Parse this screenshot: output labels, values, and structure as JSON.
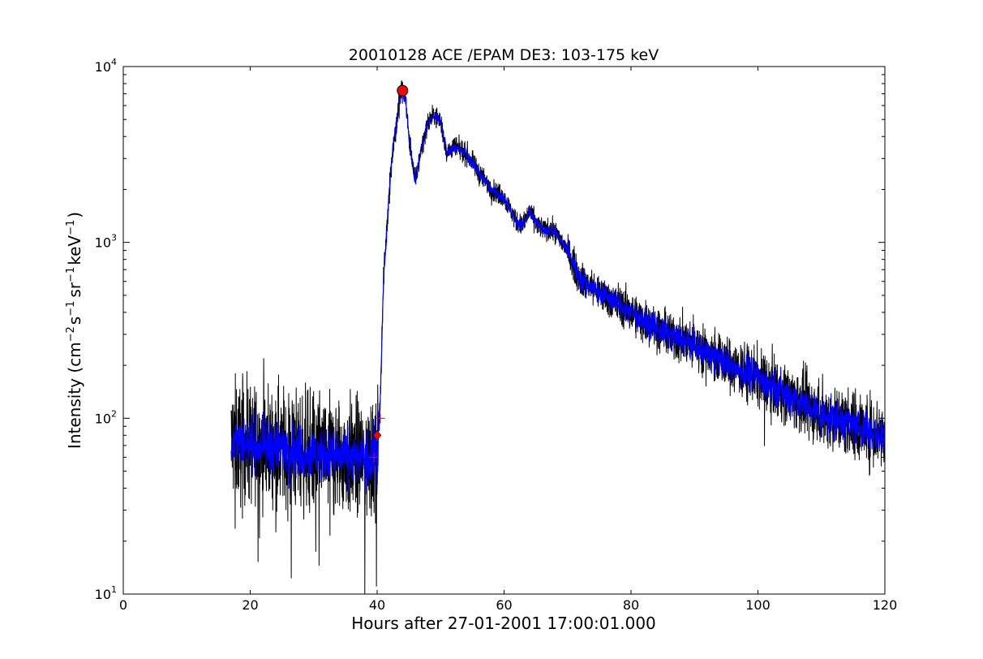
{
  "chart_data": {
    "type": "line",
    "title": "20010128 ACE /EPAM DE3: 103-175 keV",
    "xlabel": "Hours after 27-01-2001 17:00:01.000",
    "ylabel": {
      "main": "Intensity (cm",
      "exp1": "−2",
      "s": "s",
      "exp2": "−1",
      "sr": "sr",
      "exp3": "−1",
      "kev": "keV",
      "exp4": "−1",
      "close": ")"
    },
    "x_ticks": [
      "0",
      "20",
      "40",
      "60",
      "80",
      "100",
      "120"
    ],
    "x_tick_values": [
      0,
      20,
      40,
      60,
      80,
      100,
      120
    ],
    "y_ticks": [
      {
        "value": 10,
        "base": "10",
        "exp": "1"
      },
      {
        "value": 100,
        "base": "10",
        "exp": "2"
      },
      {
        "value": 1000,
        "base": "10",
        "exp": "3"
      },
      {
        "value": 10000,
        "base": "10",
        "exp": "4"
      }
    ],
    "xlim": [
      0,
      120
    ],
    "ylim": [
      10,
      10000
    ],
    "yscale": "log",
    "grid": false,
    "legend": "none",
    "series": [
      {
        "role": "raw",
        "color": "#000000",
        "x": [
          17,
          20,
          25,
          30,
          35,
          38,
          40,
          40.5,
          41,
          42,
          42.5,
          43,
          43.5,
          44,
          44.5,
          45,
          46,
          47,
          48,
          49,
          50,
          51,
          52,
          54,
          56,
          58,
          60,
          62,
          63,
          64,
          65,
          66,
          68,
          70,
          72,
          75,
          80,
          85,
          90,
          95,
          100,
          105,
          110,
          115,
          120
        ],
        "y": [
          75,
          72,
          68,
          63,
          60,
          58,
          60,
          130,
          600,
          2200,
          3500,
          4500,
          6500,
          7300,
          6500,
          4000,
          2200,
          3500,
          4800,
          5300,
          4900,
          3200,
          3500,
          3200,
          2500,
          2000,
          1800,
          1300,
          1250,
          1500,
          1300,
          1200,
          1150,
          900,
          620,
          520,
          400,
          310,
          260,
          205,
          170,
          135,
          105,
          92,
          80
        ]
      },
      {
        "role": "smoothed",
        "color": "#0000ff",
        "x": [
          17,
          20,
          25,
          30,
          35,
          38,
          40,
          40.5,
          41,
          42,
          42.5,
          43,
          43.5,
          44,
          44.5,
          45,
          46,
          47,
          48,
          49,
          50,
          51,
          52,
          54,
          56,
          58,
          60,
          62,
          63,
          64,
          65,
          66,
          68,
          70,
          72,
          75,
          80,
          85,
          90,
          95,
          100,
          105,
          110,
          115,
          120
        ],
        "y": [
          75,
          72,
          68,
          63,
          60,
          58,
          60,
          130,
          600,
          2200,
          3500,
          4500,
          6500,
          7300,
          6500,
          4000,
          2200,
          3500,
          4800,
          5300,
          4900,
          3200,
          3500,
          3200,
          2500,
          2000,
          1800,
          1300,
          1250,
          1500,
          1300,
          1200,
          1150,
          900,
          620,
          520,
          400,
          310,
          260,
          205,
          170,
          135,
          105,
          92,
          80
        ]
      }
    ],
    "markers": [
      {
        "name": "peak",
        "shape": "circle",
        "color": "#ff0000",
        "x": 44,
        "y": 7300
      },
      {
        "name": "onset",
        "shape": "diamond",
        "color": "#ff0000",
        "x": 40,
        "y": 80
      },
      {
        "name": "onset-upper",
        "shape": "plus",
        "color": "#ff0000",
        "x": 40.5,
        "y": 100
      },
      {
        "name": "onset-lower",
        "shape": "plus",
        "color": "#ff0000",
        "x": 39.5,
        "y": 60
      }
    ],
    "noise": {
      "pre_event_band_factor": 1.55,
      "decay_band_factor": 1.3
    }
  }
}
